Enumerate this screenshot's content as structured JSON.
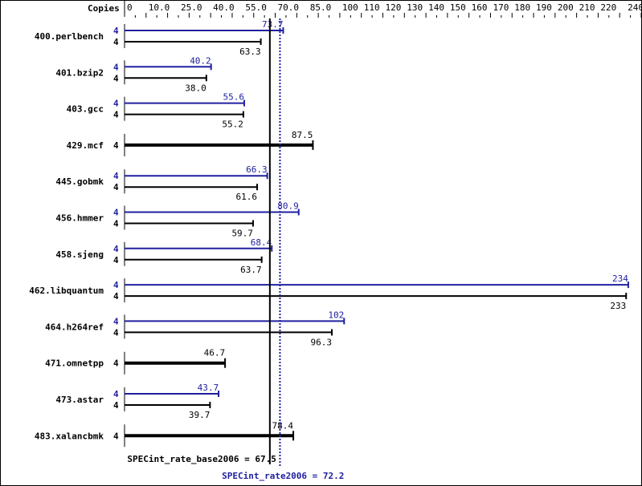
{
  "chart_data": {
    "type": "bar",
    "orientation": "horizontal",
    "copies_header": "Copies",
    "xlim": [
      0,
      240
    ],
    "tick_labels": [
      "0",
      "10.0",
      "25.0",
      "40.0",
      "55.0",
      "70.0",
      "85.0",
      "100",
      "110",
      "120",
      "130",
      "140",
      "150",
      "160",
      "170",
      "180",
      "190",
      "200",
      "210",
      "220",
      "240"
    ],
    "tick_values": [
      0,
      10,
      25,
      40,
      55,
      70,
      85,
      100,
      110,
      120,
      130,
      140,
      150,
      160,
      170,
      180,
      190,
      200,
      210,
      220,
      240
    ],
    "categories": [
      "400.perlbench",
      "401.bzip2",
      "403.gcc",
      "429.mcf",
      "445.gobmk",
      "456.hmmer",
      "458.sjeng",
      "462.libquantum",
      "464.h264ref",
      "471.omnetpp",
      "473.astar",
      "483.xalancbmk"
    ],
    "series": [
      {
        "name": "SPECint_rate2006",
        "copies": [
          4,
          4,
          4,
          null,
          4,
          4,
          4,
          4,
          4,
          null,
          4,
          null
        ],
        "values": [
          73.7,
          40.2,
          55.6,
          null,
          66.3,
          80.9,
          68.4,
          234,
          102,
          null,
          43.7,
          null
        ],
        "labels": [
          "73.7",
          "40.2",
          "55.6",
          "",
          "66.3",
          "80.9",
          "68.4",
          "234",
          "102",
          "",
          "43.7",
          ""
        ]
      },
      {
        "name": "SPECint_rate_base2006",
        "copies": [
          4,
          4,
          4,
          4,
          4,
          4,
          4,
          4,
          4,
          4,
          4,
          4
        ],
        "values": [
          63.3,
          38.0,
          55.2,
          87.5,
          61.6,
          59.7,
          63.7,
          233,
          96.3,
          46.7,
          39.7,
          78.4
        ],
        "labels": [
          "63.3",
          "38.0",
          "55.2",
          "87.5",
          "61.6",
          "59.7",
          "63.7",
          "233",
          "96.3",
          "46.7",
          "39.7",
          "78.4"
        ]
      }
    ],
    "reference_lines": [
      {
        "label": "SPECint_rate_base2006 = 67.5",
        "value": 67.5,
        "color": "#000000",
        "style": "solid"
      },
      {
        "label": "SPECint_rate2006 = 72.2",
        "value": 72.2,
        "color": "#2020a0",
        "style": "dotted"
      }
    ],
    "colors": {
      "peak": "#2020a0",
      "base": "#000000"
    }
  }
}
